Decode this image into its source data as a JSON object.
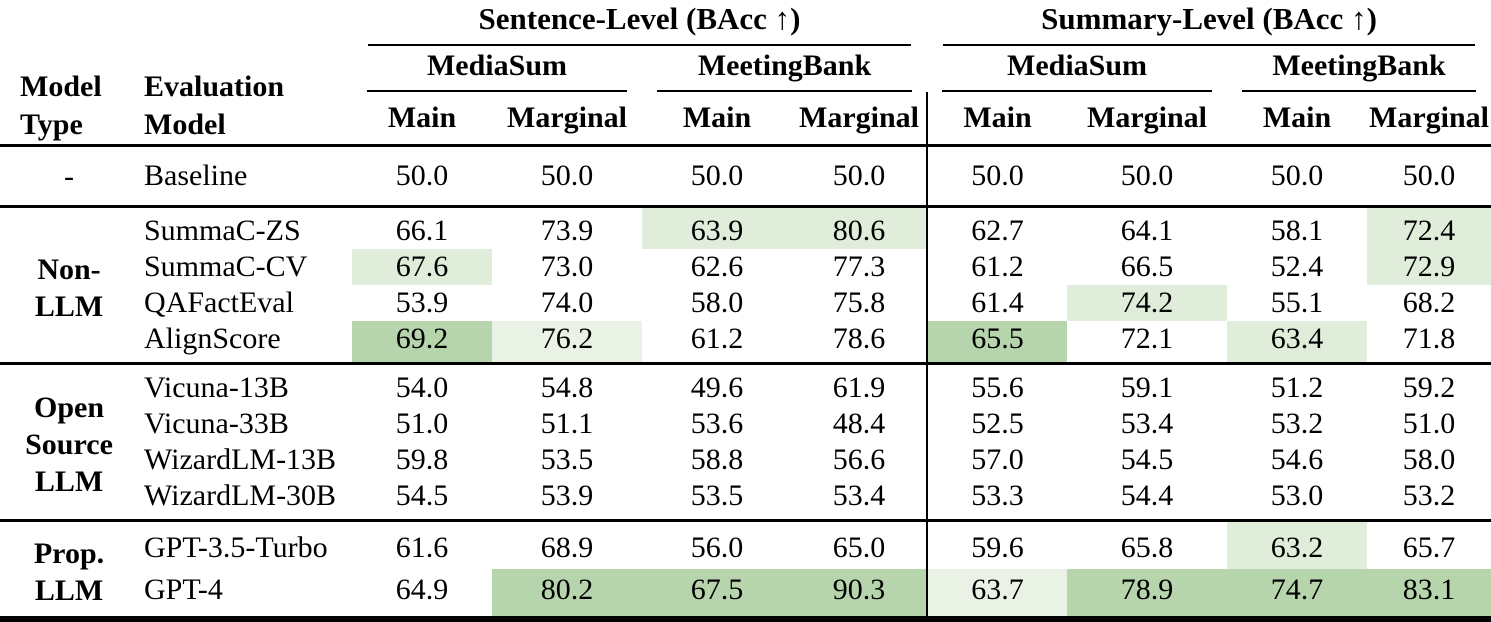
{
  "header": {
    "model_type_lines": [
      "Model",
      "Type"
    ],
    "eval_model_lines": [
      "Evaluation",
      "Model"
    ],
    "level_groups": [
      {
        "label": "Sentence-Level (BAcc ↑)"
      },
      {
        "label": "Summary-Level (BAcc ↑)"
      }
    ],
    "datasets": [
      "MediaSum",
      "MeetingBank",
      "MediaSum",
      "MeetingBank"
    ],
    "subcols": [
      "Main",
      "Marginal",
      "Main",
      "Marginal",
      "Main",
      "Marginal",
      "Main",
      "Marginal"
    ]
  },
  "highlight_palette": {
    "1": "#e9f2e5",
    "2": "#e0edda",
    "3": "#b6d5ac"
  },
  "body": {
    "groups": [
      {
        "type_lines": [
          "-"
        ],
        "rows": [
          {
            "model": "Baseline",
            "values": [
              "50.0",
              "50.0",
              "50.0",
              "50.0",
              "50.0",
              "50.0",
              "50.0",
              "50.0"
            ],
            "hl": [
              0,
              0,
              0,
              0,
              0,
              0,
              0,
              0
            ]
          }
        ]
      },
      {
        "type_lines": [
          "Non-",
          "LLM"
        ],
        "rows": [
          {
            "model": "SummaC-ZS",
            "values": [
              "66.1",
              "73.9",
              "63.9",
              "80.6",
              "62.7",
              "64.1",
              "58.1",
              "72.4"
            ],
            "hl": [
              0,
              0,
              2,
              2,
              0,
              0,
              0,
              2
            ]
          },
          {
            "model": "SummaC-CV",
            "values": [
              "67.6",
              "73.0",
              "62.6",
              "77.3",
              "61.2",
              "66.5",
              "52.4",
              "72.9"
            ],
            "hl": [
              2,
              0,
              0,
              0,
              0,
              0,
              0,
              2
            ]
          },
          {
            "model": "QAFactEval",
            "values": [
              "53.9",
              "74.0",
              "58.0",
              "75.8",
              "61.4",
              "74.2",
              "55.1",
              "68.2"
            ],
            "hl": [
              0,
              0,
              0,
              0,
              0,
              2,
              0,
              0
            ]
          },
          {
            "model": "AlignScore",
            "values": [
              "69.2",
              "76.2",
              "61.2",
              "78.6",
              "65.5",
              "72.1",
              "63.4",
              "71.8"
            ],
            "hl": [
              3,
              1,
              0,
              0,
              3,
              0,
              2,
              0
            ]
          }
        ]
      },
      {
        "type_lines": [
          "Open",
          "Source",
          "LLM"
        ],
        "rows": [
          {
            "model": "Vicuna-13B",
            "values": [
              "54.0",
              "54.8",
              "49.6",
              "61.9",
              "55.6",
              "59.1",
              "51.2",
              "59.2"
            ],
            "hl": [
              0,
              0,
              0,
              0,
              0,
              0,
              0,
              0
            ]
          },
          {
            "model": "Vicuna-33B",
            "values": [
              "51.0",
              "51.1",
              "53.6",
              "48.4",
              "52.5",
              "53.4",
              "53.2",
              "51.0"
            ],
            "hl": [
              0,
              0,
              0,
              0,
              0,
              0,
              0,
              0
            ]
          },
          {
            "model": "WizardLM-13B",
            "values": [
              "59.8",
              "53.5",
              "58.8",
              "56.6",
              "57.0",
              "54.5",
              "54.6",
              "58.0"
            ],
            "hl": [
              0,
              0,
              0,
              0,
              0,
              0,
              0,
              0
            ]
          },
          {
            "model": "WizardLM-30B",
            "values": [
              "54.5",
              "53.9",
              "53.5",
              "53.4",
              "53.3",
              "54.4",
              "53.0",
              "53.2"
            ],
            "hl": [
              0,
              0,
              0,
              0,
              0,
              0,
              0,
              0
            ]
          }
        ]
      },
      {
        "type_lines": [
          "Prop.",
          "LLM"
        ],
        "rows": [
          {
            "model": "GPT-3.5-Turbo",
            "values": [
              "61.6",
              "68.9",
              "56.0",
              "65.0",
              "59.6",
              "65.8",
              "63.2",
              "65.7"
            ],
            "hl": [
              0,
              0,
              0,
              0,
              0,
              0,
              2,
              0
            ]
          },
          {
            "model": "GPT-4",
            "values": [
              "64.9",
              "80.2",
              "67.5",
              "90.3",
              "63.7",
              "78.9",
              "74.7",
              "83.1"
            ],
            "hl": [
              0,
              3,
              3,
              3,
              1,
              3,
              3,
              3
            ]
          }
        ]
      }
    ]
  }
}
